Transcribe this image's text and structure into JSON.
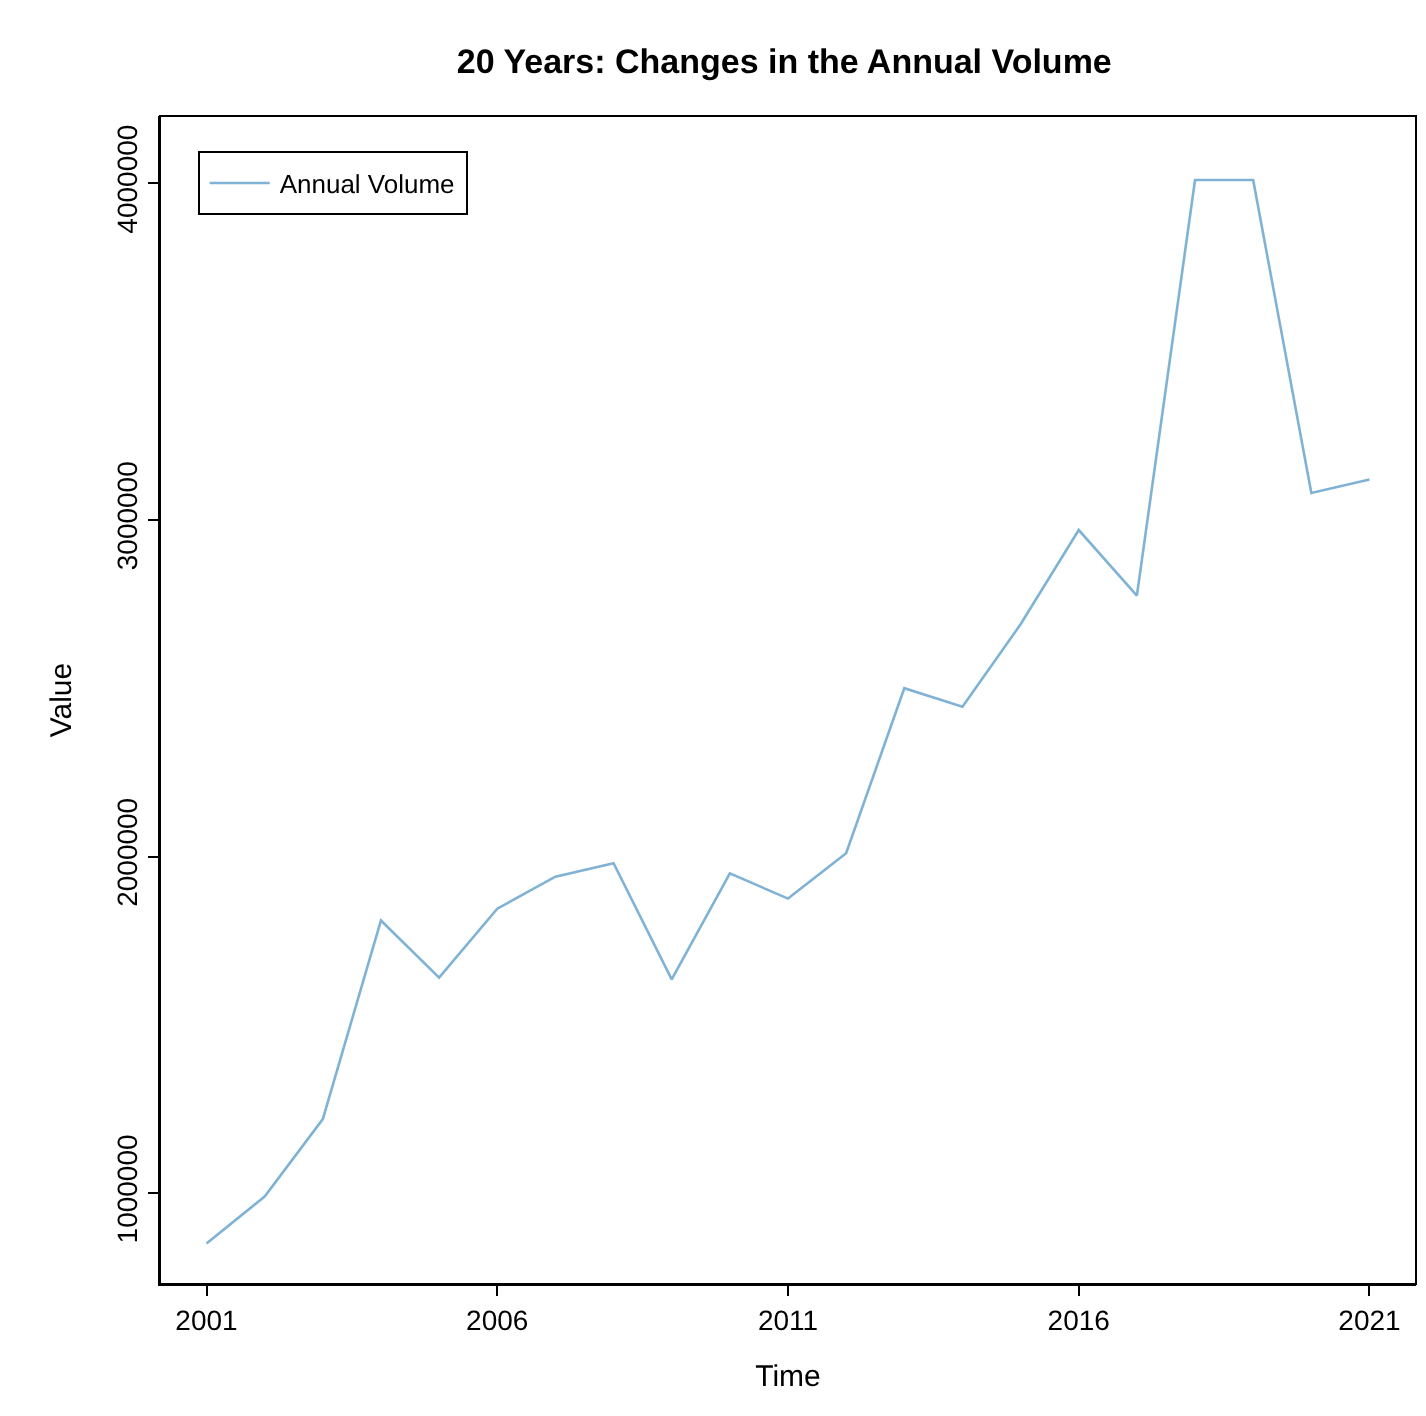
{
  "chart_data": {
    "type": "line",
    "title": "20 Years: Changes in the Annual Volume",
    "xlabel": "Time",
    "ylabel": "Value",
    "x": [
      2001,
      2002,
      2003,
      2004,
      2005,
      2006,
      2007,
      2008,
      2009,
      2010,
      2011,
      2012,
      2013,
      2014,
      2015,
      2016,
      2017,
      2018,
      2019,
      2020,
      2021
    ],
    "series": [
      {
        "name": "Annual Volume",
        "color": "#7fb2d5",
        "values": [
          850000,
          990000,
          1220000,
          1810000,
          1640000,
          1845000,
          1940000,
          1980000,
          1635000,
          1950000,
          1875000,
          2010000,
          2500000,
          2445000,
          2690000,
          2970000,
          2775000,
          4010000,
          4010000,
          3080000,
          3120000
        ]
      }
    ],
    "xlim": [
      2000.2,
      2021.8
    ],
    "xticks": [
      2001,
      2006,
      2011,
      2016,
      2021
    ],
    "ylim": [
      730000,
      4200000
    ],
    "yticks": [
      1000000,
      2000000,
      3000000,
      4000000
    ],
    "legend": "top left",
    "marker": "none",
    "line_style": "solid"
  }
}
